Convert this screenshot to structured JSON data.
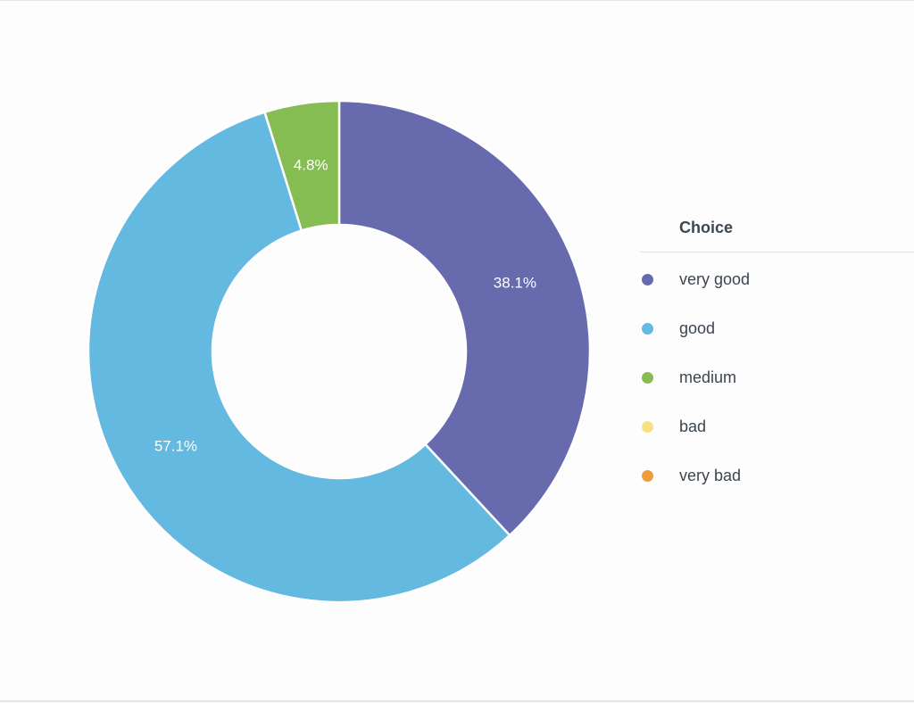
{
  "chart_data": {
    "type": "pie",
    "donut": true,
    "title": "",
    "legend_title": "Choice",
    "legend_placement": "right",
    "slices": [
      {
        "label": "very good",
        "percent": 38.1,
        "value_label": "38.1%",
        "color": "#676bae"
      },
      {
        "label": "good",
        "percent": 57.1,
        "value_label": "57.1%",
        "color": "#64b9e0"
      },
      {
        "label": "medium",
        "percent": 4.8,
        "value_label": "4.8%",
        "color": "#86bd53"
      },
      {
        "label": "bad",
        "percent": 0,
        "value_label": "",
        "color": "#f8e184"
      },
      {
        "label": "very bad",
        "percent": 0,
        "value_label": "",
        "color": "#ed9d3c"
      }
    ]
  }
}
